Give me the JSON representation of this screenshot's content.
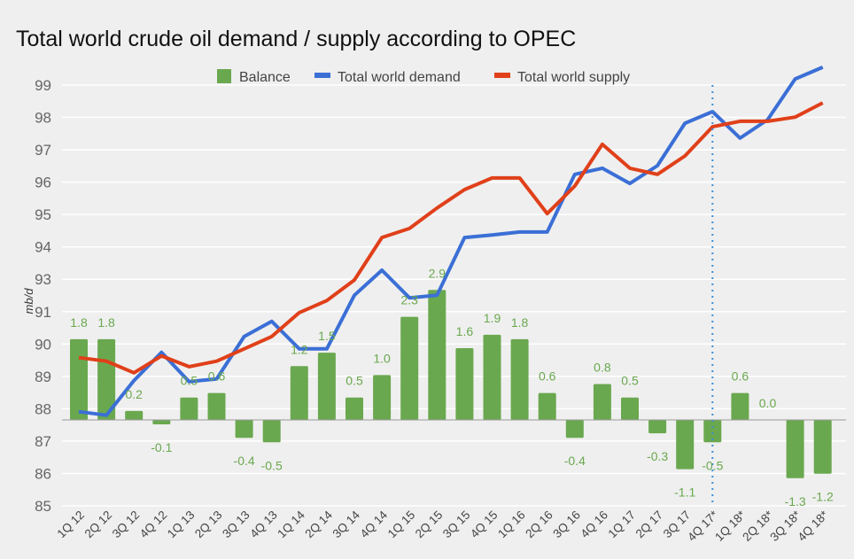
{
  "chart_data": {
    "type": "bar+line",
    "title": "Total world crude oil demand / supply according to OPEC",
    "xlabel": "",
    "ylabel": "mb/d",
    "ytick_labels": [
      "99",
      "98",
      "97",
      "96",
      "95",
      "94",
      "93",
      "91",
      "90",
      "89",
      "88",
      "87",
      "86",
      "85"
    ],
    "ytick_values": [
      99,
      98,
      97,
      96,
      95,
      94,
      93,
      91,
      90,
      89,
      88,
      87,
      86,
      85
    ],
    "grid": true,
    "legend_position": "top-center",
    "categories": [
      "1Q 12",
      "2Q 12",
      "3Q 12",
      "4Q 12",
      "1Q 13",
      "2Q 13",
      "3Q 13",
      "4Q 13",
      "1Q 14",
      "2Q 14",
      "3Q 14",
      "4Q 14",
      "1Q 15",
      "2Q 15",
      "3Q 15",
      "4Q 15",
      "1Q 16",
      "2Q 16",
      "3Q 16",
      "4Q 16",
      "1Q 17",
      "2Q 17",
      "3Q 17",
      "4Q 17*",
      "1Q 18*",
      "2Q 18*",
      "3Q 18*",
      "4Q 18*"
    ],
    "forecast_marker_category": "4Q 17*",
    "series": [
      {
        "name": "Balance",
        "type": "bar",
        "color": "#6aa84f",
        "values": [
          1.8,
          1.8,
          0.2,
          -0.1,
          0.5,
          0.6,
          -0.4,
          -0.5,
          1.2,
          1.5,
          0.5,
          1.0,
          2.3,
          2.9,
          1.6,
          1.9,
          1.8,
          0.6,
          -0.4,
          0.8,
          0.5,
          -0.3,
          -1.1,
          -0.5,
          0.6,
          0.0,
          -1.3,
          -1.2
        ],
        "labels": [
          "1.8",
          "1.8",
          "0.2",
          "-0.1",
          "0.5",
          "0.6",
          "-0.4",
          "-0.5",
          "1.2",
          "1.5",
          "0.5",
          "1.0",
          "2.3",
          "2.9",
          "1.6",
          "1.9",
          "1.8",
          "0.6",
          "-0.4",
          "0.8",
          "0.5",
          "-0.3",
          "-1.1",
          "-0.5",
          "0.6",
          "0.0",
          "-1.3",
          "-1.2"
        ]
      },
      {
        "name": "Total world demand",
        "type": "line",
        "color": "#3b6fd6",
        "values": [
          87.91,
          87.8,
          88.87,
          89.74,
          88.84,
          88.92,
          90.23,
          90.7,
          89.85,
          89.85,
          92.01,
          93.28,
          91.85,
          92.01,
          94.29,
          94.37,
          94.46,
          94.46,
          96.24,
          96.43,
          95.96,
          96.51,
          97.82,
          98.18,
          97.36,
          97.93,
          99.19,
          99.55
        ]
      },
      {
        "name": "Total world supply",
        "type": "line",
        "color": "#e0401a",
        "values": [
          89.58,
          89.47,
          89.11,
          89.63,
          89.3,
          89.47,
          89.85,
          90.23,
          90.97,
          91.68,
          92.95,
          94.29,
          94.57,
          95.2,
          95.77,
          96.13,
          96.13,
          95.03,
          95.88,
          97.17,
          96.43,
          96.24,
          96.81,
          97.71,
          97.88,
          97.88,
          98.01,
          98.45
        ]
      }
    ]
  }
}
